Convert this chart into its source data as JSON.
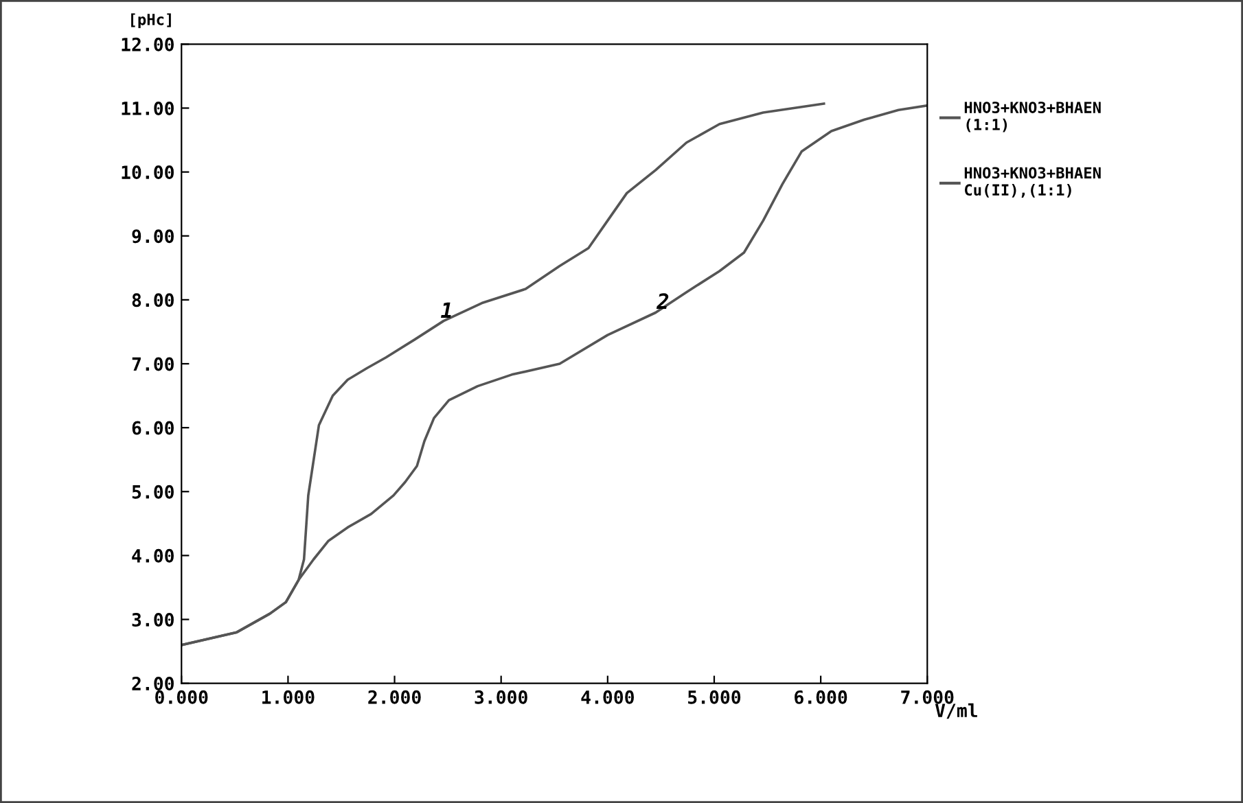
{
  "chart_data": {
    "type": "line",
    "ylabel": "[pHc]",
    "xlabel": "V/ml",
    "xlim": [
      0,
      7
    ],
    "ylim": [
      2,
      12
    ],
    "xticks": [
      {
        "value": 0,
        "label": "0.000"
      },
      {
        "value": 1,
        "label": "1.000"
      },
      {
        "value": 2,
        "label": "2.000"
      },
      {
        "value": 3,
        "label": "3.000"
      },
      {
        "value": 4,
        "label": "4.000"
      },
      {
        "value": 5,
        "label": "5.000"
      },
      {
        "value": 6,
        "label": "6.000"
      },
      {
        "value": 7,
        "label": "7.000"
      }
    ],
    "yticks": [
      {
        "value": 2,
        "label": "2.00"
      },
      {
        "value": 3,
        "label": "3.00"
      },
      {
        "value": 4,
        "label": "4.00"
      },
      {
        "value": 5,
        "label": "5.00"
      },
      {
        "value": 6,
        "label": "6.00"
      },
      {
        "value": 7,
        "label": "7.00"
      },
      {
        "value": 8,
        "label": "8.00"
      },
      {
        "value": 9,
        "label": "9.00"
      },
      {
        "value": 10,
        "label": "10.00"
      },
      {
        "value": 11,
        "label": "11.00"
      },
      {
        "value": 12,
        "label": "12.00"
      }
    ],
    "grid": false,
    "legend": "right",
    "marker": "none",
    "line_style": "solid",
    "series": [
      {
        "name": "HNO3+KNO3+BHAEN\n(1:1)",
        "color": "#555555",
        "x": [
          0,
          0.52,
          0.83,
          0.98,
          1.1,
          1.15,
          1.19,
          1.29,
          1.42,
          1.56,
          1.74,
          1.92,
          2.19,
          2.46,
          2.82,
          3.23,
          3.55,
          3.82,
          4.0,
          4.18,
          4.45,
          4.74,
          5.05,
          5.46,
          6.03
        ],
        "values": [
          2.6,
          2.8,
          3.09,
          3.27,
          3.62,
          3.94,
          4.94,
          6.04,
          6.5,
          6.75,
          6.93,
          7.1,
          7.38,
          7.67,
          7.95,
          8.17,
          8.53,
          8.81,
          9.24,
          9.67,
          10.03,
          10.46,
          10.75,
          10.93,
          11.07
        ]
      },
      {
        "name": "HNO3+KNO3+BHAEN\nCu(II),(1:1)",
        "color": "#555555",
        "x": [
          0,
          0.52,
          0.83,
          0.98,
          1.1,
          1.24,
          1.38,
          1.56,
          1.78,
          1.99,
          2.1,
          2.21,
          2.28,
          2.37,
          2.51,
          2.78,
          3.1,
          3.55,
          4.0,
          4.45,
          4.74,
          5.05,
          5.28,
          5.46,
          5.64,
          5.82,
          6.1,
          6.41,
          6.73,
          7.0
        ],
        "values": [
          2.6,
          2.8,
          3.09,
          3.27,
          3.62,
          3.94,
          4.23,
          4.44,
          4.65,
          4.94,
          5.15,
          5.4,
          5.79,
          6.15,
          6.43,
          6.65,
          6.83,
          7.0,
          7.45,
          7.8,
          8.12,
          8.45,
          8.74,
          9.24,
          9.81,
          10.32,
          10.64,
          10.82,
          10.97,
          11.04
        ]
      }
    ],
    "annotations": [
      {
        "text": "1",
        "x": 2.49,
        "y": 7.81
      },
      {
        "text": "2",
        "x": 4.52,
        "y": 7.95
      }
    ]
  }
}
